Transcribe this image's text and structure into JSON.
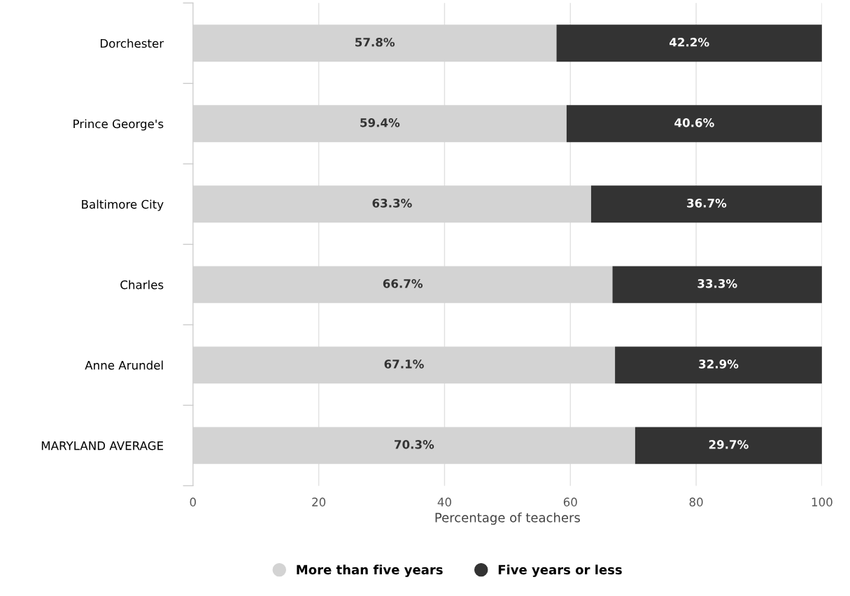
{
  "chart_data": {
    "type": "bar",
    "orientation": "horizontal",
    "stacked": true,
    "categories": [
      "Dorchester",
      "Prince George's",
      "Baltimore City",
      "Charles",
      "Anne Arundel",
      "MARYLAND AVERAGE"
    ],
    "series": [
      {
        "name": "More than five years",
        "color": "#d3d3d3",
        "values": [
          57.8,
          59.4,
          63.3,
          66.7,
          67.1,
          70.3
        ],
        "value_labels": [
          "57.8%",
          "59.4%",
          "63.3%",
          "66.7%",
          "67.1%",
          "70.3%"
        ]
      },
      {
        "name": "Five years or less",
        "color": "#333333",
        "values": [
          42.2,
          40.6,
          36.7,
          33.3,
          32.9,
          29.7
        ],
        "value_labels": [
          "42.2%",
          "40.6%",
          "36.7%",
          "33.3%",
          "32.9%",
          "29.7%"
        ]
      }
    ],
    "xlabel": "Percentage of teachers",
    "xlim": [
      0,
      100
    ],
    "xticks": [
      0,
      20,
      40,
      60,
      80,
      100
    ],
    "grid": "x",
    "legend": "bottom",
    "marker": "circle"
  }
}
